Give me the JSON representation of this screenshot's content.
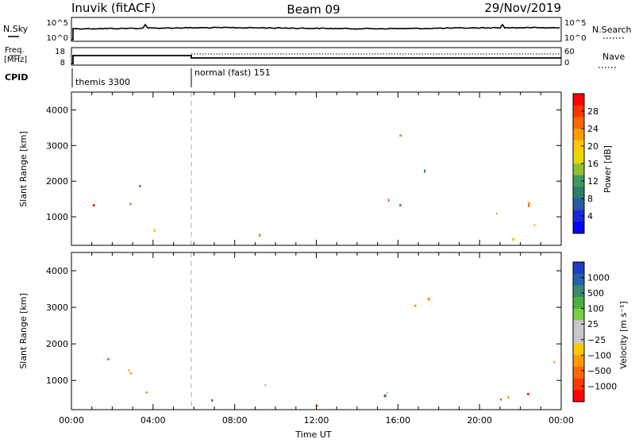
{
  "header": {
    "station": "Inuvik (fitACF)",
    "beam": "Beam 09",
    "date": "29/Nov/2019"
  },
  "panels": {
    "nsky_label": "N.Sky",
    "nsky_ticks": [
      "10^5",
      "10^0"
    ],
    "nsearch_label": "N.Search",
    "nsearch_ticks": [
      "10^5",
      "10^0"
    ],
    "freq_label_1": "Freq.",
    "freq_label_2": "[MHz]",
    "freq_ticks": [
      "18",
      "8"
    ],
    "nave_label": "Nave",
    "nave_ticks": [
      "60",
      "0"
    ],
    "cpid_label": "CPID",
    "cpid_segments": [
      "themis 3300",
      "normal (fast) 151"
    ]
  },
  "chart_data": [
    {
      "type": "heatmap",
      "name": "power-panel",
      "ylabel": "Slant Range [km]",
      "xlabel": "",
      "xlim": [
        "00:00",
        "24:00"
      ],
      "ylim": [
        200,
        4500
      ],
      "yticks": [
        "1000",
        "2000",
        "3000",
        "4000"
      ],
      "xticks": [
        "00:00",
        "04:00",
        "08:00",
        "12:00",
        "16:00",
        "20:00",
        "00:00"
      ],
      "colorbar_label": "Power [dB]",
      "colorbar_ticks": [
        "28",
        "24",
        "20",
        "16",
        "12",
        "8",
        "4"
      ],
      "colorbar_colors": [
        "#ff0000",
        "#ff3300",
        "#ff6600",
        "#ff9a00",
        "#ffc800",
        "#e6d800",
        "#90c030",
        "#409a60",
        "#2e7d6a",
        "#2a5aa0",
        "#1a28d8",
        "#0000ff"
      ],
      "gray_gs_color": "#c8c8c8"
    },
    {
      "type": "heatmap",
      "name": "velocity-panel",
      "ylabel": "Slant Range [km]",
      "xlabel": "Time UT",
      "xlim": [
        "00:00",
        "24:00"
      ],
      "ylim": [
        200,
        4500
      ],
      "yticks": [
        "1000",
        "2000",
        "3000",
        "4000"
      ],
      "xticks": [
        "00:00",
        "04:00",
        "08:00",
        "12:00",
        "16:00",
        "20:00",
        "00:00"
      ],
      "colorbar_label": "Velocity [m s⁻¹]",
      "colorbar_ticks": [
        "1000",
        "500",
        "100",
        "25",
        "−25",
        "−100",
        "−500",
        "−1000"
      ],
      "colorbar_colors": [
        "#1e3cc8",
        "#2a60a8",
        "#3a8a6e",
        "#4ab040",
        "#78d040",
        "#c8c8c8",
        "#c8c8c8",
        "#ffc800",
        "#ff9a00",
        "#ff6a00",
        "#ff3a00",
        "#ff0000"
      ],
      "gray_gs_color": "#b8b8b8"
    }
  ]
}
